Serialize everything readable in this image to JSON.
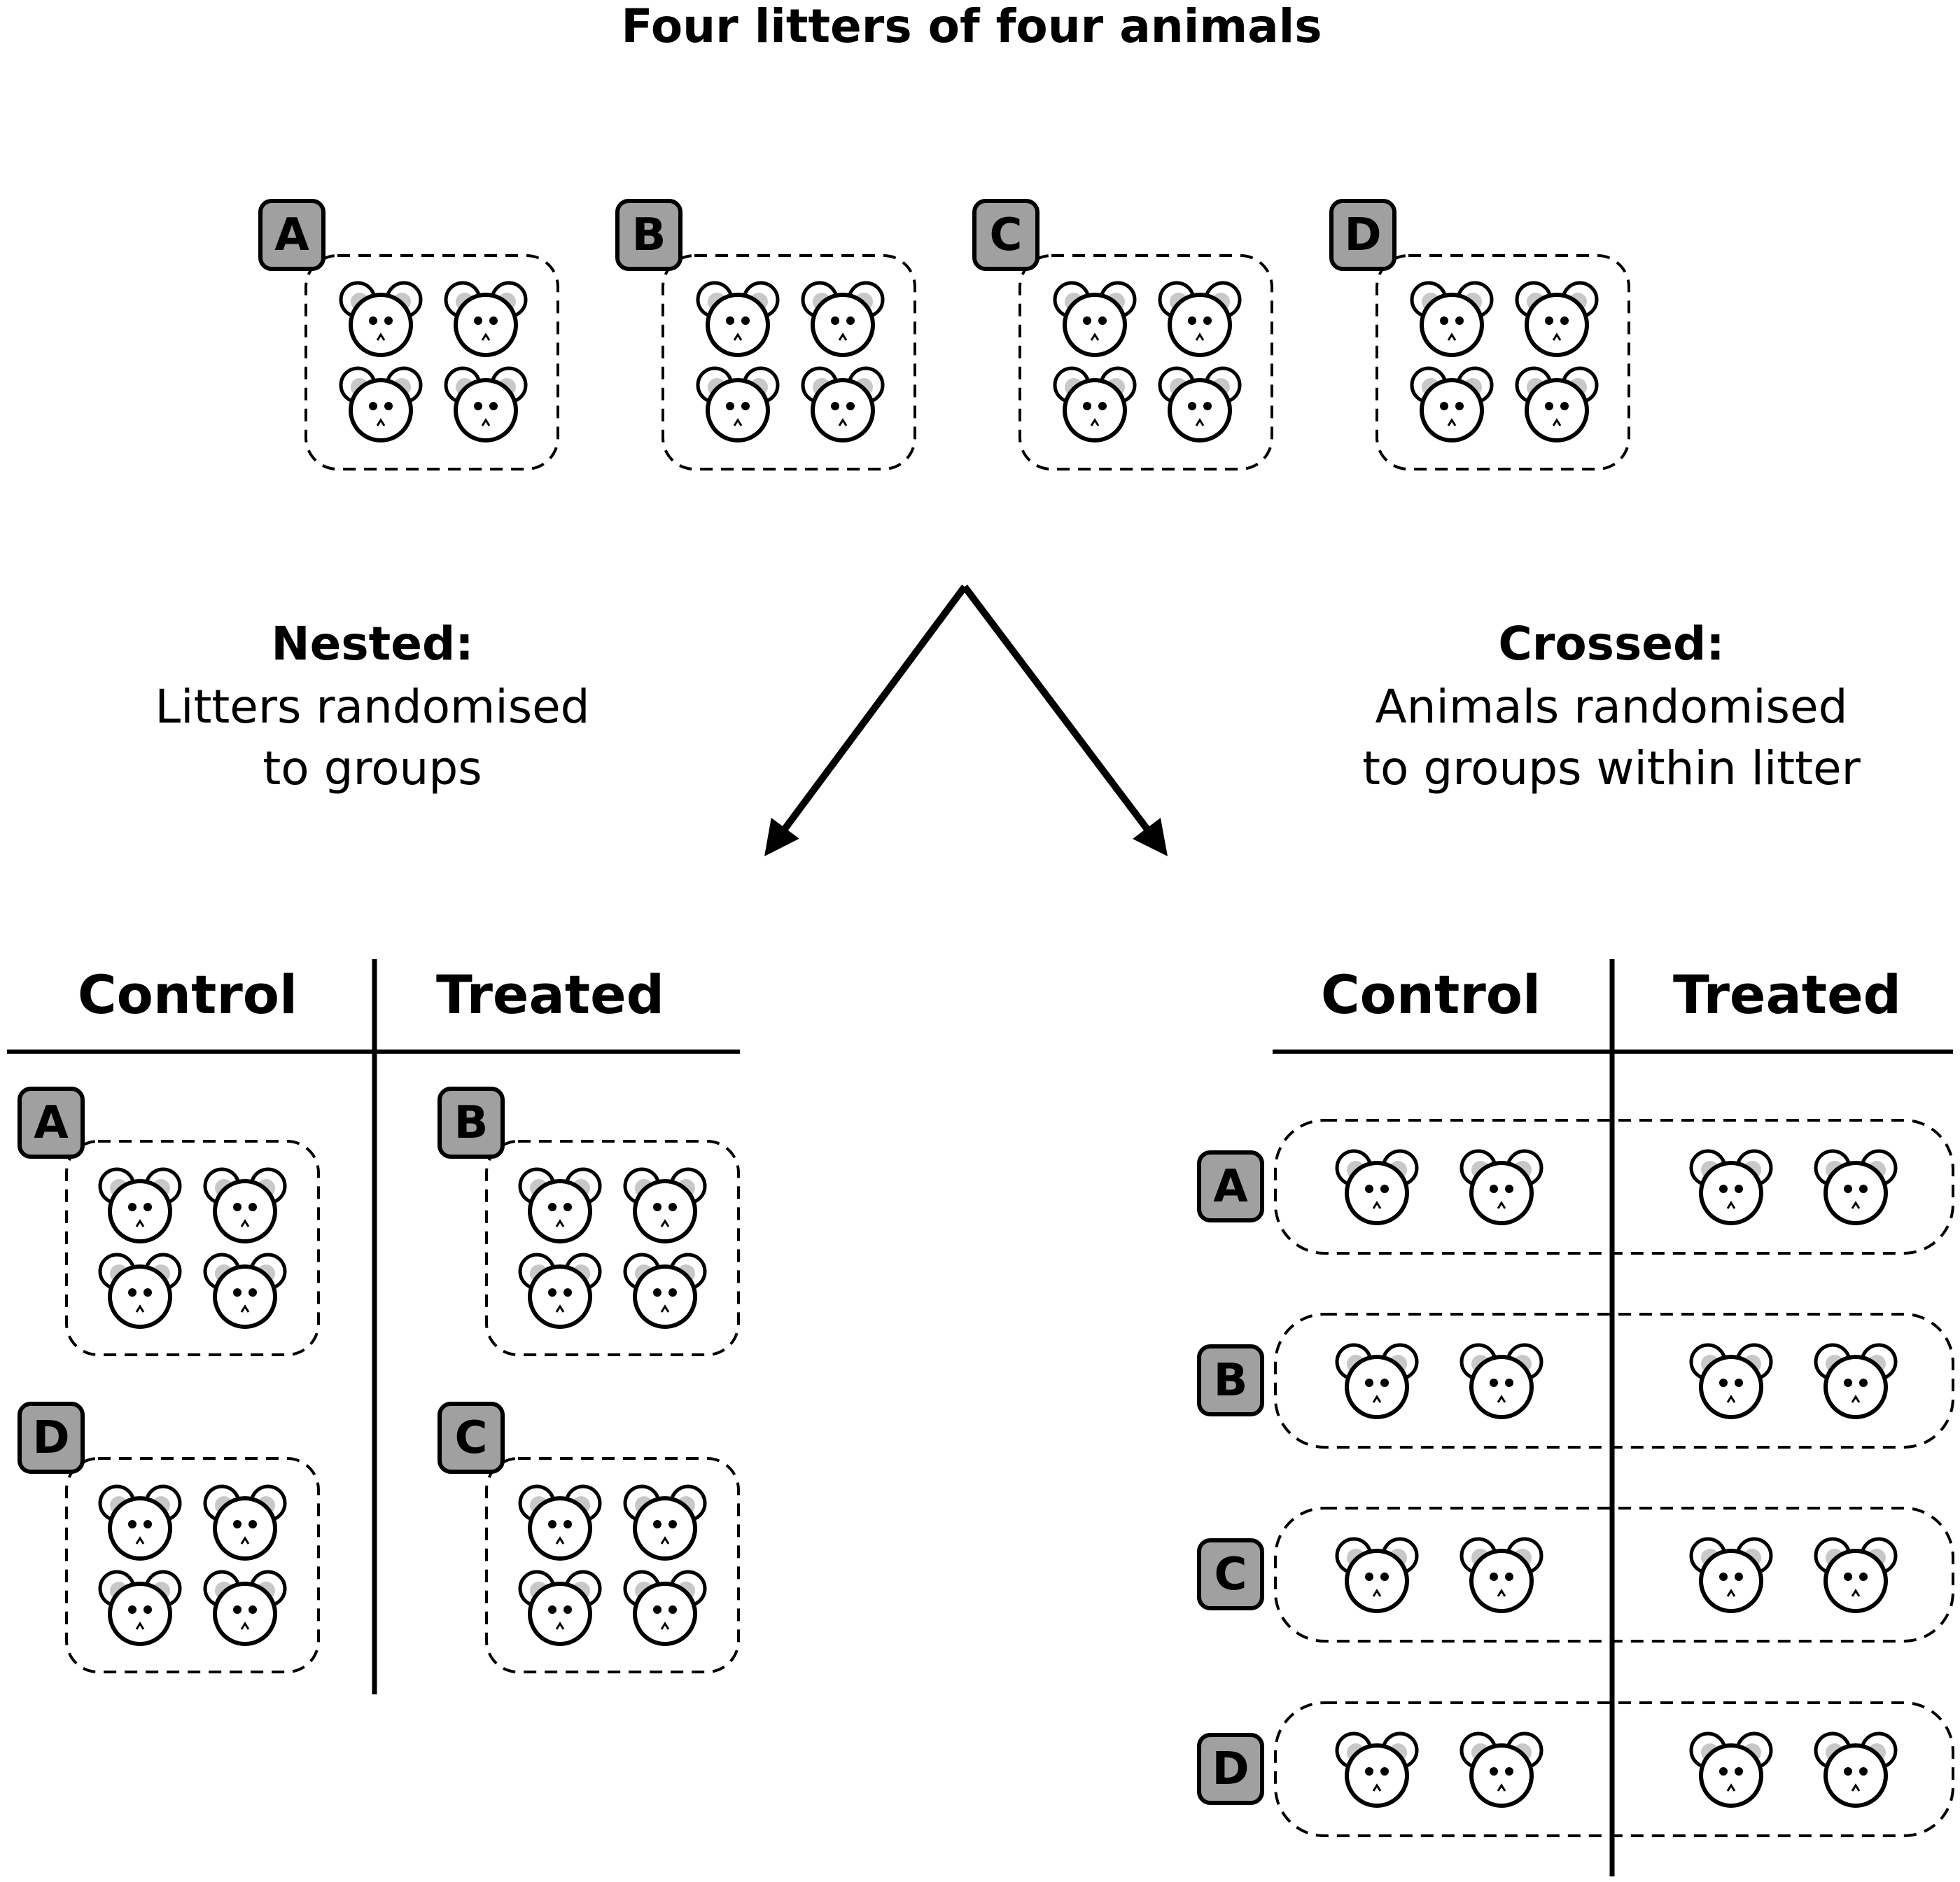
{
  "title": "Four litters of four animals",
  "litters": [
    "A",
    "B",
    "C",
    "D"
  ],
  "nested": {
    "heading": "Nested:",
    "description_lines": [
      "Litters randomised",
      "to groups"
    ],
    "control_label": "Control",
    "treated_label": "Treated",
    "control_litters": [
      "A",
      "D"
    ],
    "treated_litters": [
      "B",
      "C"
    ]
  },
  "crossed": {
    "heading": "Crossed:",
    "description_lines": [
      "Animals randomised",
      "to groups within litter"
    ],
    "control_label": "Control",
    "treated_label": "Treated",
    "litters": [
      "A",
      "B",
      "C",
      "D"
    ]
  },
  "icons": {
    "animal": "mouse-face-icon",
    "litter_badge": "litter-badge"
  },
  "colors": {
    "badge_fill": "#a0a0a0",
    "ear_fill": "#c8c8c8",
    "line": "#000000",
    "background": "#ffffff"
  }
}
